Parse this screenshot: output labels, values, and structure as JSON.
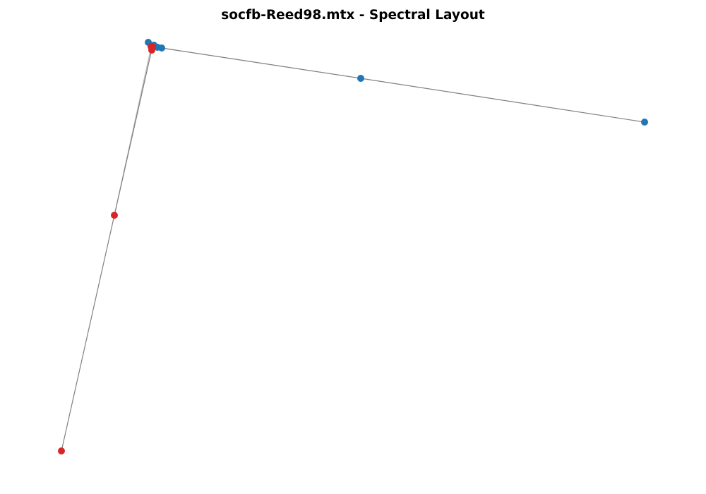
{
  "title": "socfb-Reed98.mtx - Spectral Layout",
  "colors": {
    "background": "#ffffff",
    "edge": "#808080",
    "community_blue": "#1f77b4",
    "community_red": "#d62728"
  }
}
